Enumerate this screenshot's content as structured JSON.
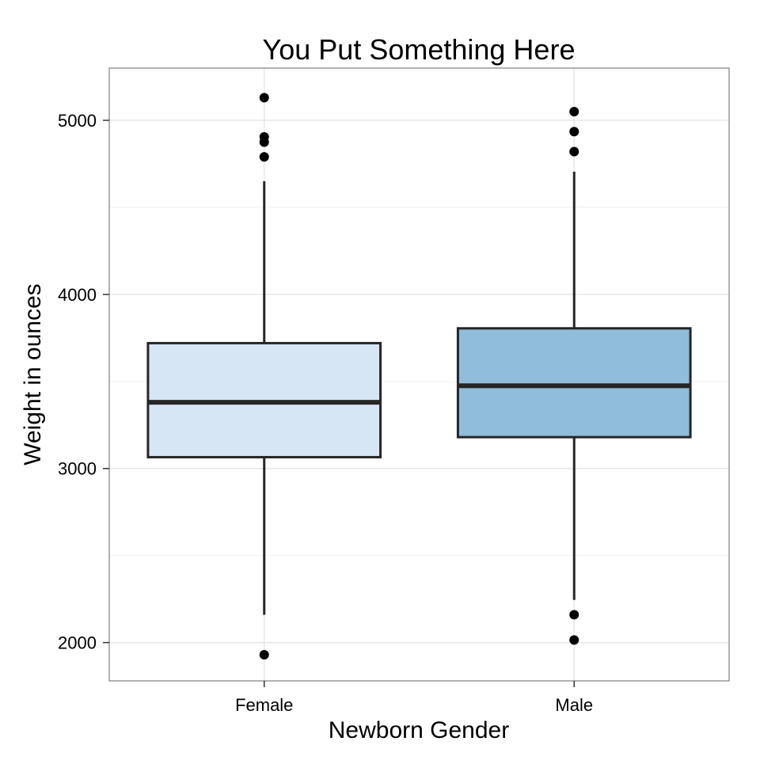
{
  "chart_data": {
    "type": "box",
    "title": "You Put Something Here",
    "xlabel": "Newborn Gender",
    "ylabel": "Weight in ounces",
    "ylim": [
      1780,
      5300
    ],
    "y_ticks": [
      2000,
      3000,
      4000,
      5000
    ],
    "grid": true,
    "categories": [
      "Female",
      "Male"
    ],
    "series": [
      {
        "category": "Female",
        "fill": "#d7e6f5",
        "whisker_low": 2160,
        "q1": 3065,
        "median": 3380,
        "q3": 3720,
        "whisker_high": 4650,
        "outliers": [
          1930,
          4790,
          4875,
          4905,
          5130
        ]
      },
      {
        "category": "Male",
        "fill": "#90bdda",
        "whisker_low": 2245,
        "q1": 3180,
        "median": 3475,
        "q3": 3805,
        "whisker_high": 4705,
        "outliers": [
          2015,
          2160,
          4820,
          4935,
          5050
        ]
      }
    ],
    "colors": {
      "panel_border": "#7f7f7f",
      "grid_major": "#e5e5e5",
      "grid_minor": "#f2f2f2",
      "box_stroke": "#262626",
      "outlier": "#000000"
    }
  }
}
